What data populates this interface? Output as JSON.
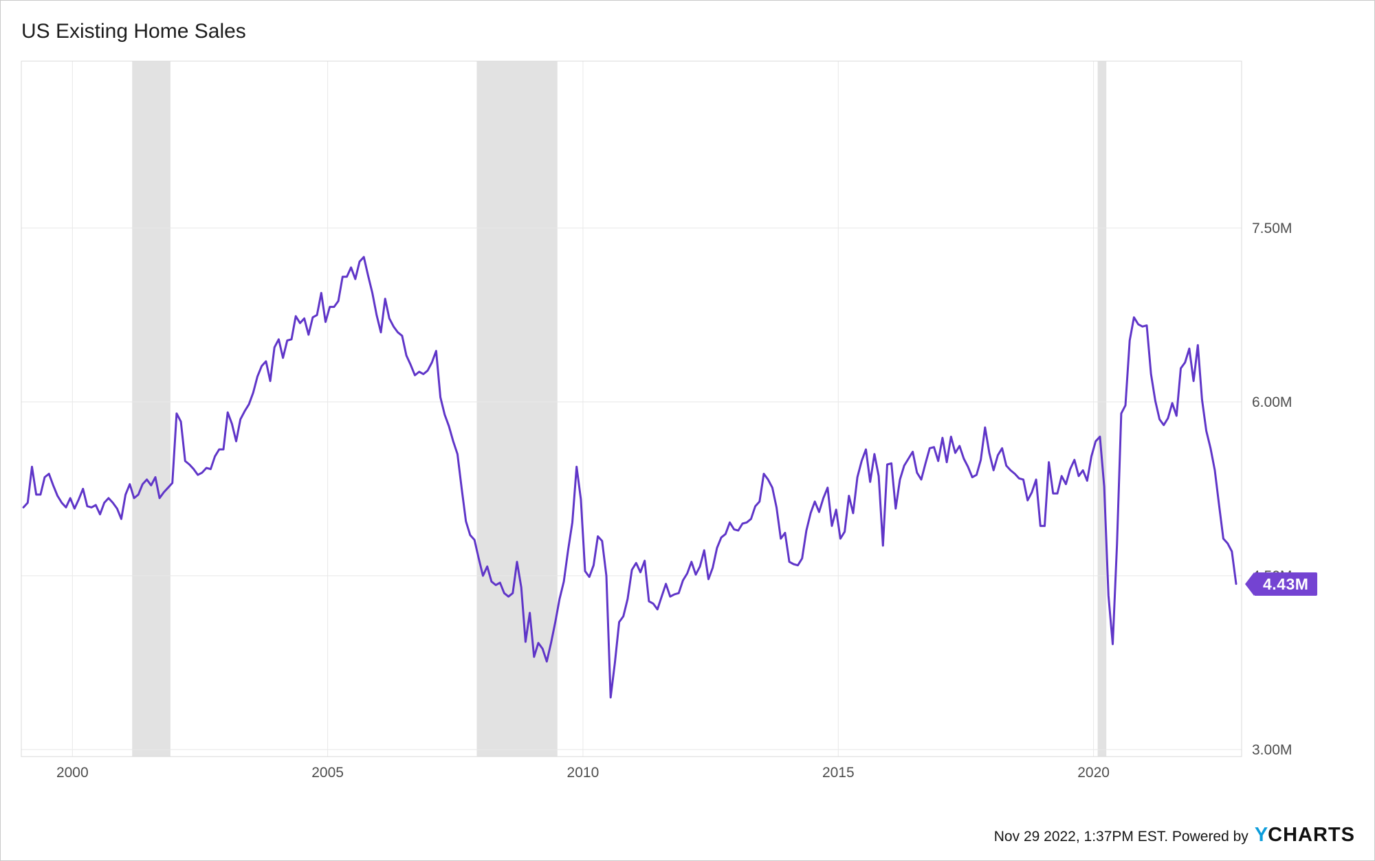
{
  "title": "US Existing Home Sales",
  "badge": {
    "label": "4.43M"
  },
  "footer": {
    "timestamp": "Nov 29 2022, 1:37PM EST. Powered by",
    "logo_y": "Y",
    "logo_rest": "CHARTS"
  },
  "colors": {
    "line": "#5f35c8",
    "badge": "#7443d2",
    "recession_band": "#e2e2e2",
    "grid": "#e8e8e8",
    "plot_border": "#d8d8d8",
    "axis_text": "#4d4d4d",
    "title_text": "#1c1c1c",
    "logo_blue": "#0d9ddb",
    "footer_text": "#141414"
  },
  "chart_data": {
    "type": "line",
    "title": "US Existing Home Sales",
    "unit": "M",
    "legend": "none",
    "grid": "on",
    "x_ticks": [
      2000,
      2005,
      2010,
      2015,
      2020
    ],
    "x_tick_labels": [
      "2000",
      "2005",
      "2010",
      "2015",
      "2020"
    ],
    "y_ticks": [
      3.0,
      4.5,
      6.0,
      7.5
    ],
    "y_tick_labels": [
      "3.00M",
      "4.50M",
      "6.00M",
      "7.50M"
    ],
    "x_range": [
      1999.0,
      2022.9
    ],
    "y_range": [
      2.94,
      8.94
    ],
    "recession_bands": [
      [
        2001.17,
        2001.92
      ],
      [
        2007.92,
        2009.5
      ],
      [
        2020.08,
        2020.25
      ]
    ],
    "last_value": 4.43,
    "last_value_label": "4.43M",
    "series": [
      {
        "name": "US Existing Home Sales",
        "start_year": 1999,
        "start_month": 1,
        "frequency": "monthly",
        "values": [
          5.09,
          5.13,
          5.44,
          5.2,
          5.2,
          5.35,
          5.38,
          5.28,
          5.19,
          5.13,
          5.09,
          5.17,
          5.08,
          5.16,
          5.25,
          5.1,
          5.09,
          5.11,
          5.03,
          5.13,
          5.17,
          5.13,
          5.08,
          4.99,
          5.2,
          5.29,
          5.17,
          5.2,
          5.29,
          5.33,
          5.28,
          5.35,
          5.17,
          5.22,
          5.26,
          5.3,
          5.9,
          5.83,
          5.49,
          5.46,
          5.42,
          5.37,
          5.39,
          5.43,
          5.42,
          5.53,
          5.59,
          5.59,
          5.91,
          5.81,
          5.66,
          5.85,
          5.92,
          5.98,
          6.08,
          6.22,
          6.31,
          6.35,
          6.18,
          6.47,
          6.54,
          6.38,
          6.53,
          6.54,
          6.74,
          6.68,
          6.72,
          6.58,
          6.73,
          6.75,
          6.94,
          6.69,
          6.82,
          6.82,
          6.87,
          7.08,
          7.08,
          7.16,
          7.06,
          7.21,
          7.25,
          7.09,
          6.94,
          6.75,
          6.6,
          6.89,
          6.72,
          6.65,
          6.6,
          6.57,
          6.4,
          6.32,
          6.23,
          6.26,
          6.24,
          6.27,
          6.34,
          6.44,
          6.04,
          5.89,
          5.79,
          5.66,
          5.55,
          5.25,
          4.97,
          4.85,
          4.81,
          4.65,
          4.5,
          4.58,
          4.45,
          4.42,
          4.44,
          4.35,
          4.32,
          4.35,
          4.62,
          4.4,
          3.93,
          4.18,
          3.8,
          3.92,
          3.87,
          3.76,
          3.92,
          4.1,
          4.3,
          4.45,
          4.72,
          4.96,
          5.44,
          5.16,
          4.54,
          4.49,
          4.59,
          4.84,
          4.8,
          4.5,
          3.45,
          3.75,
          4.1,
          4.15,
          4.3,
          4.55,
          4.61,
          4.53,
          4.63,
          4.28,
          4.26,
          4.21,
          4.32,
          4.43,
          4.32,
          4.34,
          4.35,
          4.46,
          4.52,
          4.62,
          4.51,
          4.58,
          4.72,
          4.47,
          4.57,
          4.74,
          4.83,
          4.86,
          4.96,
          4.9,
          4.89,
          4.95,
          4.96,
          4.99,
          5.1,
          5.14,
          5.38,
          5.33,
          5.26,
          5.09,
          4.82,
          4.87,
          4.62,
          4.6,
          4.59,
          4.65,
          4.89,
          5.04,
          5.14,
          5.05,
          5.17,
          5.26,
          4.93,
          5.07,
          4.82,
          4.88,
          5.19,
          5.04,
          5.35,
          5.49,
          5.59,
          5.31,
          5.55,
          5.36,
          4.76,
          5.46,
          5.47,
          5.08,
          5.33,
          5.45,
          5.51,
          5.57,
          5.39,
          5.33,
          5.47,
          5.6,
          5.61,
          5.49,
          5.69,
          5.48,
          5.7,
          5.56,
          5.62,
          5.51,
          5.44,
          5.35,
          5.37,
          5.5,
          5.78,
          5.56,
          5.41,
          5.54,
          5.6,
          5.45,
          5.41,
          5.38,
          5.34,
          5.33,
          5.15,
          5.22,
          5.33,
          4.93,
          4.93,
          5.48,
          5.21,
          5.21,
          5.36,
          5.29,
          5.42,
          5.5,
          5.36,
          5.41,
          5.32,
          5.53,
          5.66,
          5.7,
          5.27,
          4.33,
          3.91,
          4.77,
          5.9,
          5.97,
          6.53,
          6.73,
          6.67,
          6.65,
          6.66,
          6.24,
          6.01,
          5.85,
          5.8,
          5.86,
          5.99,
          5.88,
          6.29,
          6.34,
          6.46,
          6.18,
          6.49,
          6.02,
          5.75,
          5.6,
          5.41,
          5.11,
          4.82,
          4.78,
          4.71,
          4.43
        ]
      }
    ]
  }
}
